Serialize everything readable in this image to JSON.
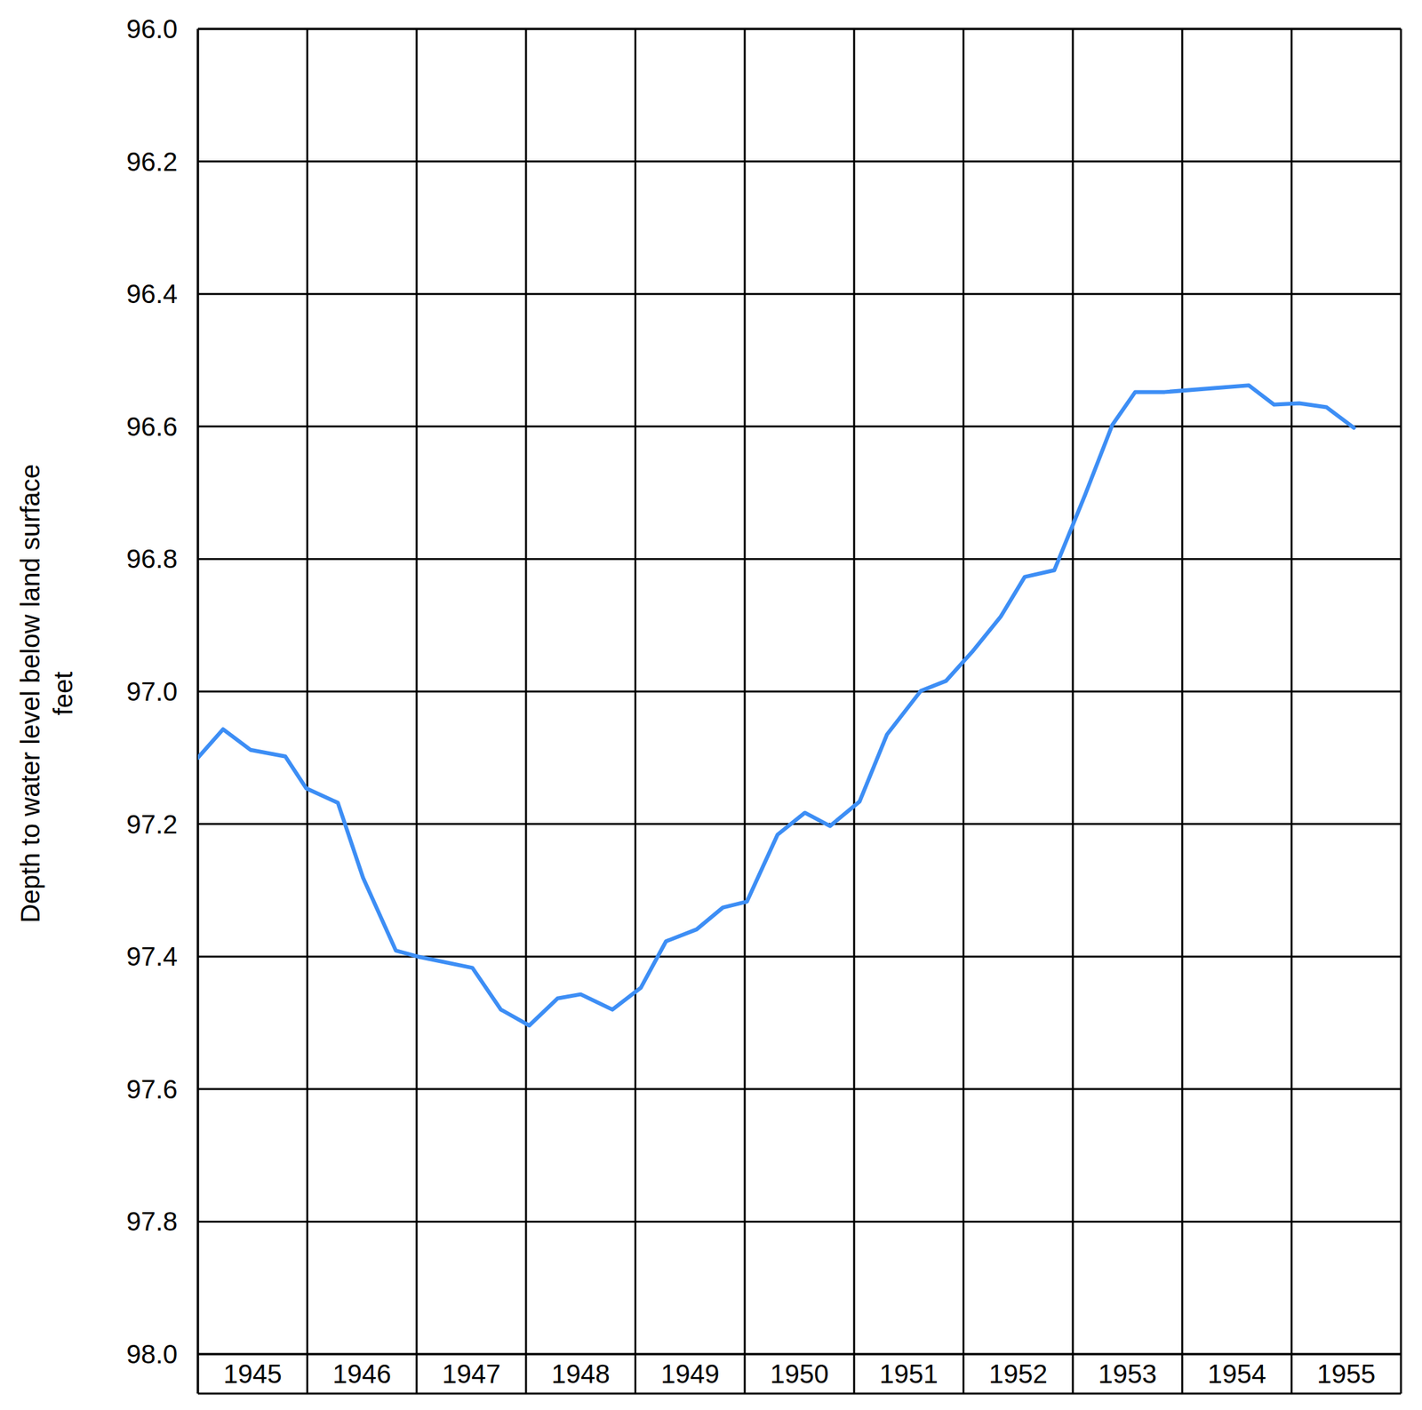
{
  "chart_data": {
    "type": "line",
    "ylabel": "Depth to water level below land surface\nfeet",
    "x": [
      1945.0,
      1945.23,
      1945.48,
      1945.8,
      1945.99,
      1946.28,
      1946.51,
      1946.81,
      1947.01,
      1947.51,
      1947.77,
      1948.03,
      1948.29,
      1948.5,
      1948.79,
      1949.05,
      1949.28,
      1949.56,
      1949.8,
      1950.02,
      1950.3,
      1950.55,
      1950.78,
      1951.05,
      1951.3,
      1951.61,
      1951.84,
      1952.08,
      1952.34,
      1952.56,
      1952.83,
      1953.11,
      1953.36,
      1953.57,
      1953.84,
      1954.61,
      1954.84,
      1955.07,
      1955.32,
      1955.57
    ],
    "values": [
      97.1,
      97.057,
      97.088,
      97.098,
      97.146,
      97.168,
      97.281,
      97.391,
      97.4,
      97.417,
      97.48,
      97.504,
      97.463,
      97.457,
      97.48,
      97.447,
      97.377,
      97.359,
      97.326,
      97.317,
      97.216,
      97.183,
      97.203,
      97.166,
      97.065,
      96.999,
      96.984,
      96.94,
      96.887,
      96.827,
      96.817,
      96.704,
      96.598,
      96.548,
      96.548,
      96.538,
      96.567,
      96.565,
      96.571,
      96.602
    ],
    "color": "#3d8ef5",
    "xlim": [
      1945,
      1956
    ],
    "xticks": [
      1945,
      1946,
      1947,
      1948,
      1949,
      1950,
      1951,
      1952,
      1953,
      1954,
      1955
    ],
    "ylim": [
      98,
      96
    ],
    "yticks": [
      {
        "value": 96,
        "label": "96.0"
      },
      96.2,
      96.4,
      96.6,
      96.8,
      {
        "value": 97,
        "label": "97.0"
      },
      97.2,
      97.4,
      97.6,
      97.8,
      {
        "value": 98,
        "label": "98.0"
      }
    ],
    "grid": true
  }
}
